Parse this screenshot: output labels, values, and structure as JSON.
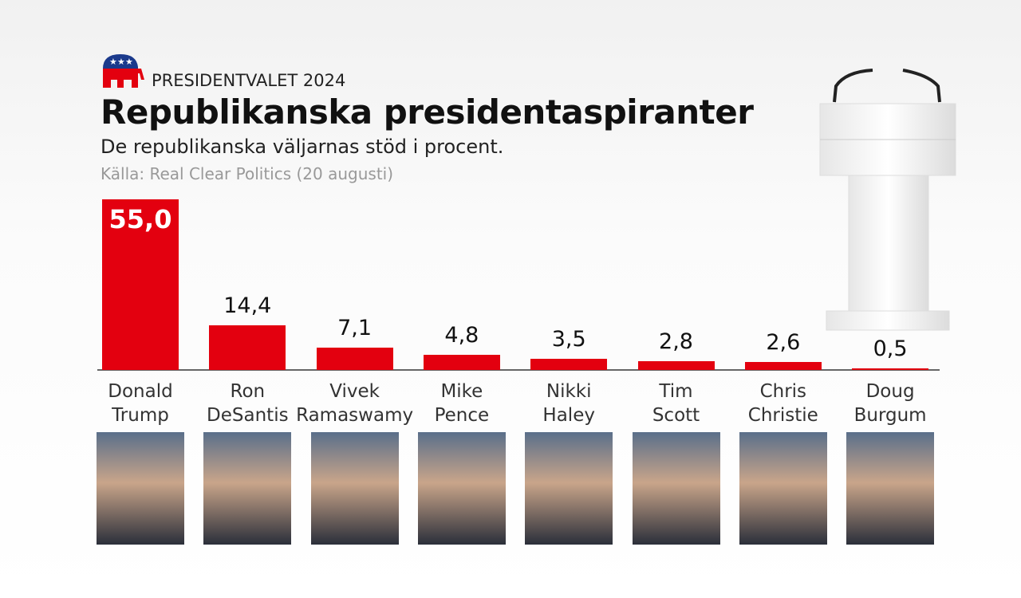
{
  "kicker": "PRESIDENTVALET 2024",
  "chart_data": {
    "type": "bar",
    "title": "Republikanska presidentaspiranter",
    "subtitle": "De republikanska väljarnas stöd i procent.",
    "source": "Källa: Real Clear Politics (20 augusti)",
    "categories": [
      "Donald Trump",
      "Ron DeSantis",
      "Vivek Ramaswamy",
      "Mike Pence",
      "Nikki Haley",
      "Tim Scott",
      "Chris Christie",
      "Doug Burgum"
    ],
    "values": [
      55.0,
      14.4,
      7.1,
      4.8,
      3.5,
      2.8,
      2.6,
      0.5
    ],
    "value_labels": [
      "55,0",
      "14,4",
      "7,1",
      "4,8",
      "3,5",
      "2,8",
      "2,6",
      "0,5"
    ],
    "color": "#e3000f"
  }
}
